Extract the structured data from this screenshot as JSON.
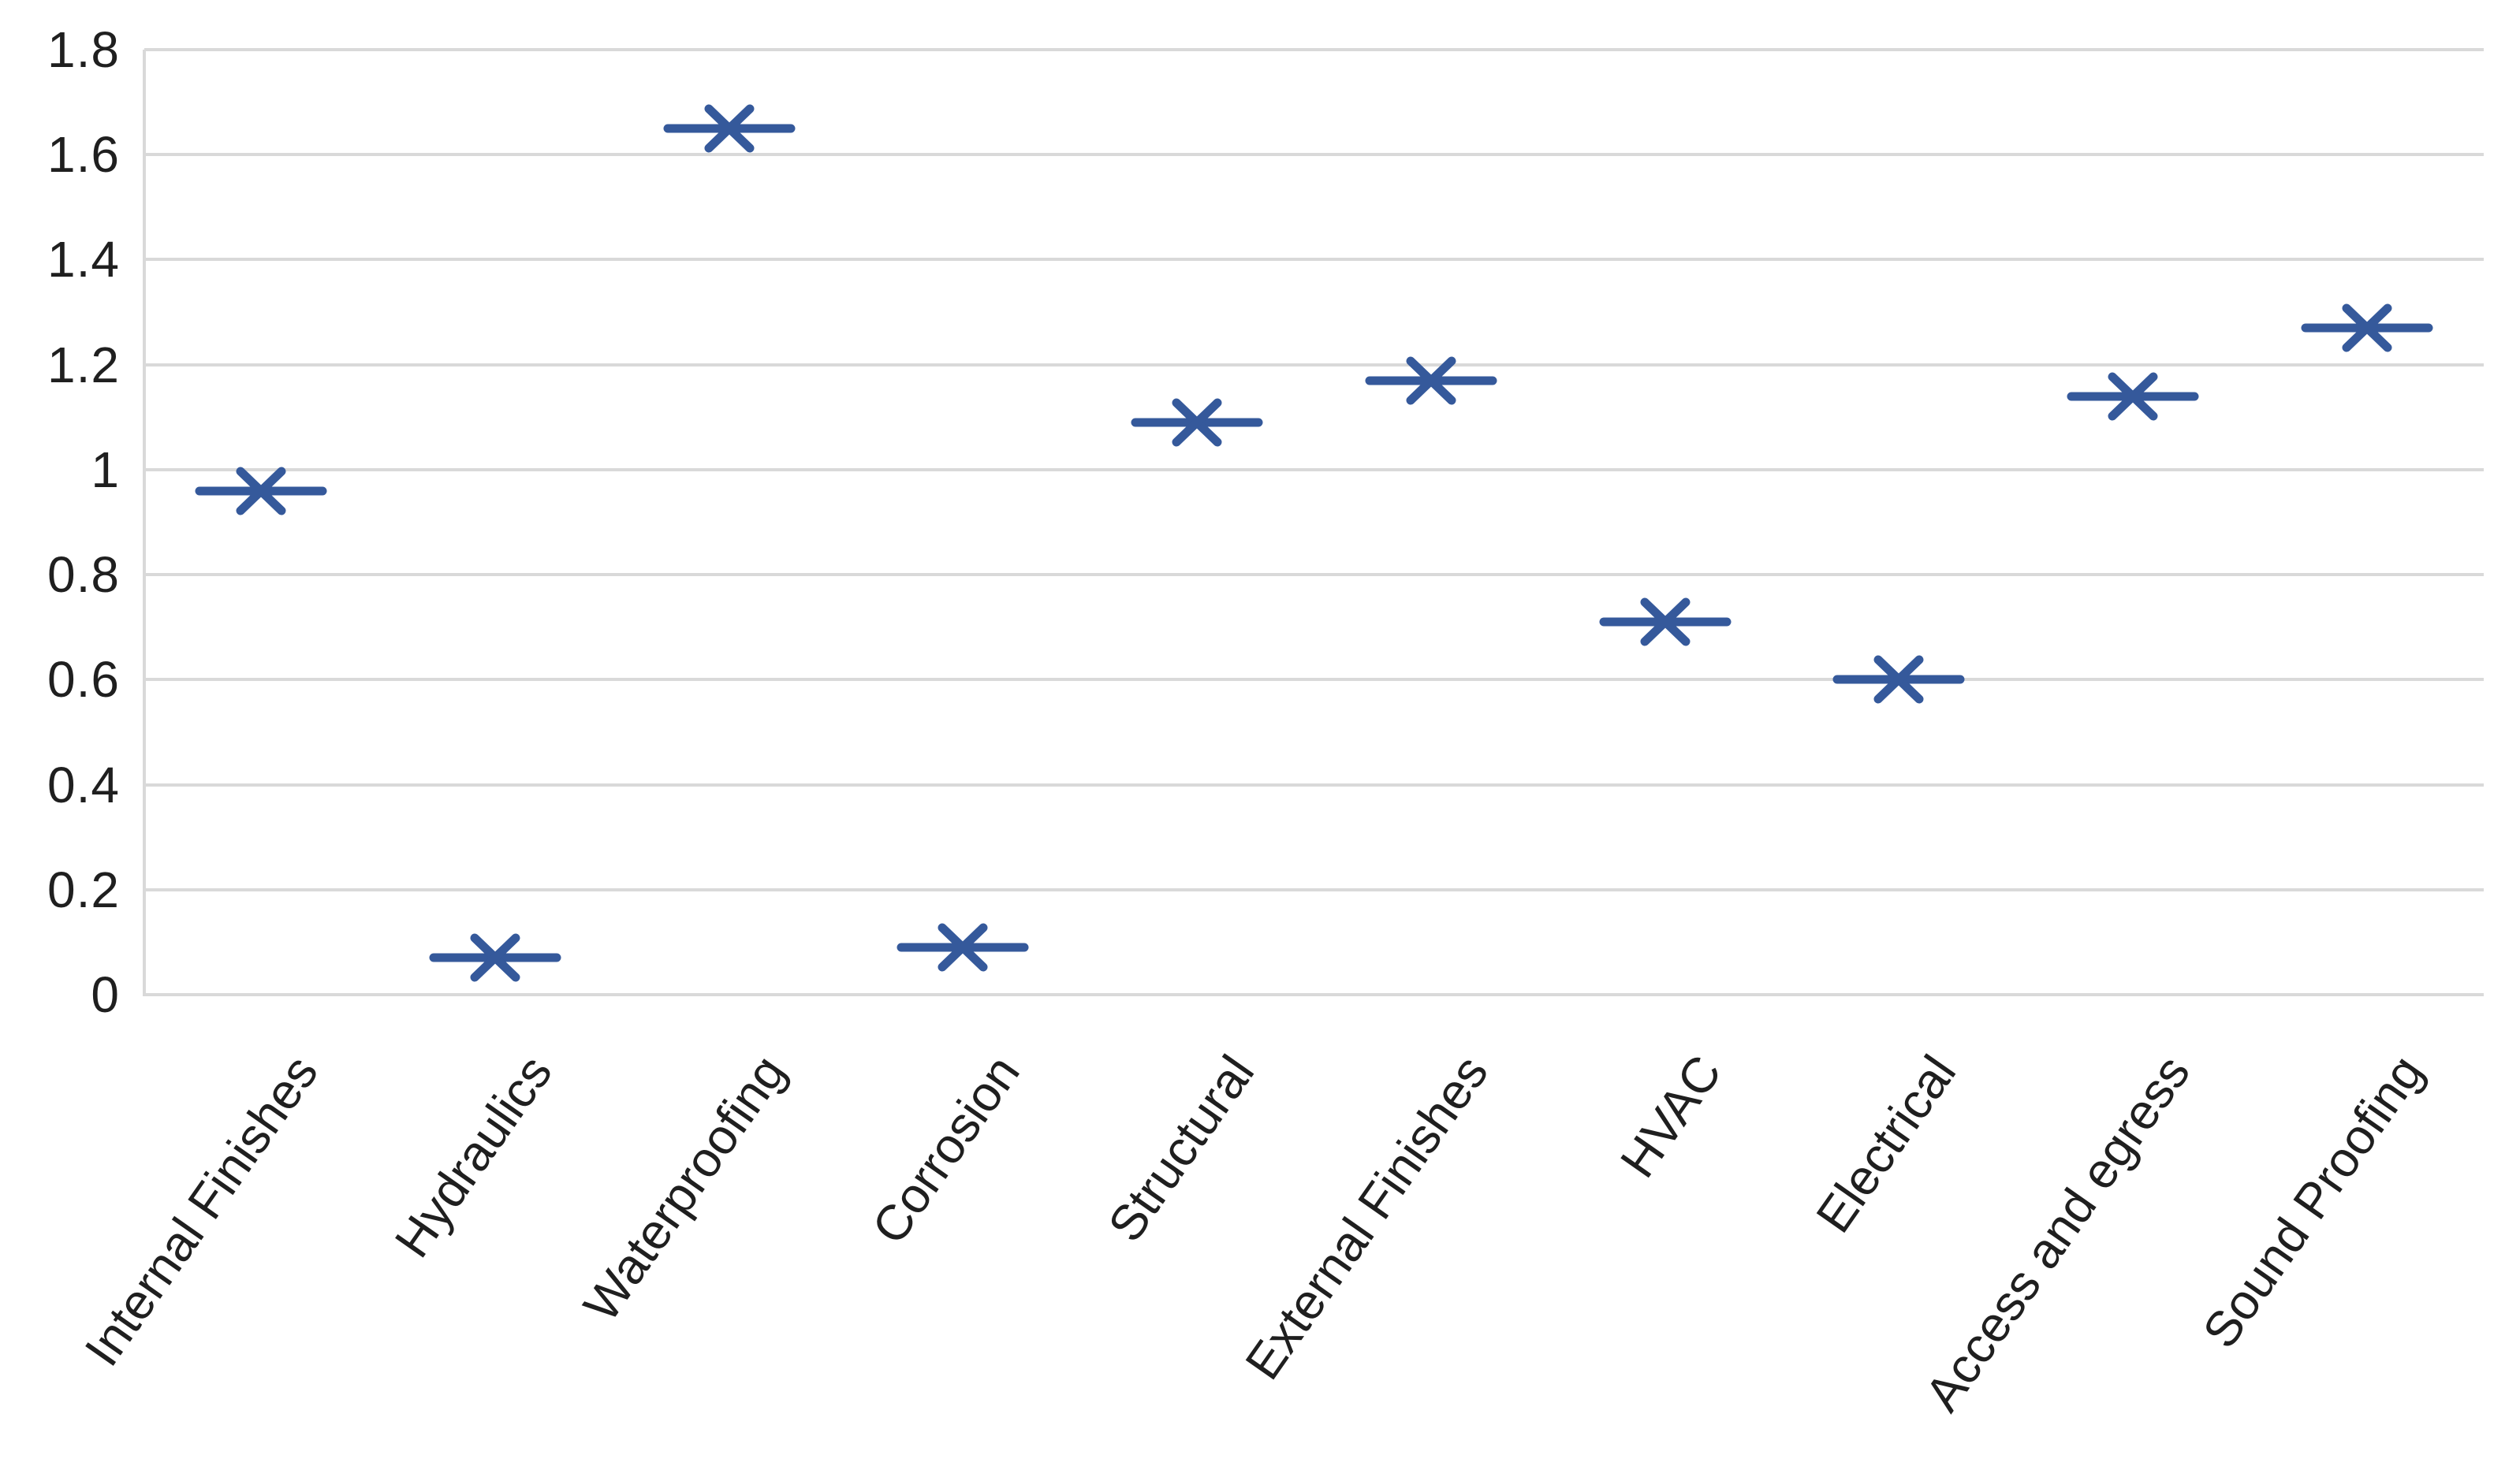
{
  "chart_data": {
    "type": "scatter",
    "title": "",
    "subtitle": "",
    "xlabel": "",
    "ylabel": "",
    "categories": [
      "Internal Finishes",
      "Hydraulics",
      "Waterproofing",
      "Corrosion",
      "Structural",
      "External Finishes",
      "HVAC",
      "Electrical",
      "Access and egress",
      "Sound Proofing"
    ],
    "values": [
      0.96,
      0.07,
      1.65,
      0.09,
      1.09,
      1.17,
      0.71,
      0.6,
      1.14,
      1.27
    ],
    "ylim": [
      0,
      1.8
    ],
    "ytick_step": 0.2,
    "yticks": [
      "0",
      "0.2",
      "0.4",
      "0.6",
      "0.8",
      "1",
      "1.2",
      "1.4",
      "1.6",
      "1.8"
    ],
    "grid": true,
    "legend": false,
    "marker_style": "x-with-horizontal-dash",
    "x_label_rotation_deg": -55,
    "colors": {
      "marker": "#35599B",
      "gridline": "#D9D9D9",
      "axis_line": "#D9D9D9",
      "tick_text": "#1F1F1F",
      "background": "#FFFFFF"
    }
  }
}
